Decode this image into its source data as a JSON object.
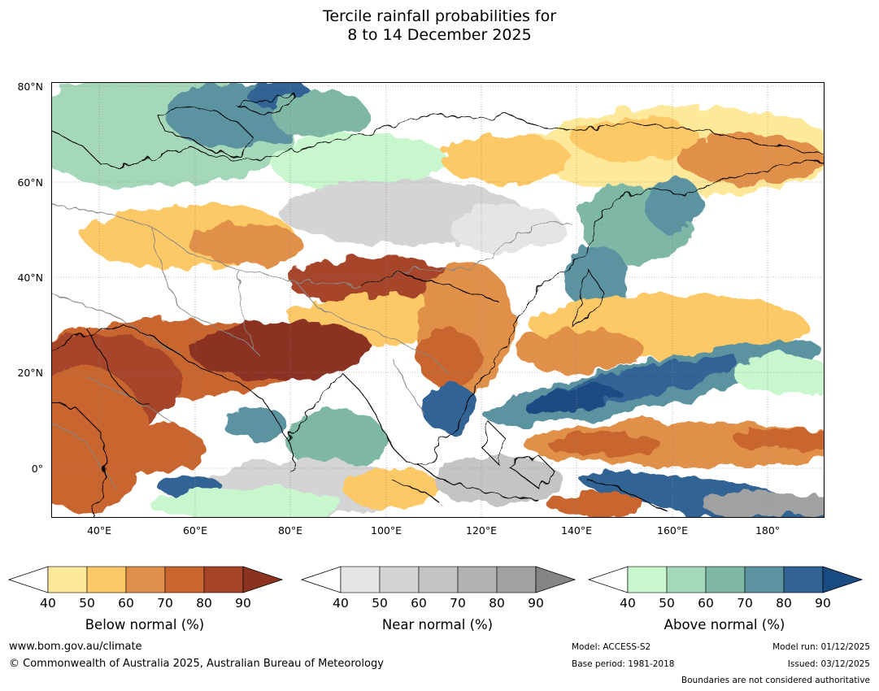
{
  "title": {
    "line1": "Tercile rainfall probabilities for",
    "line2": "8 to 14 December 2025"
  },
  "map": {
    "lat_labels": [
      "80°N",
      "60°N",
      "40°N",
      "20°N",
      "0°"
    ],
    "lon_labels": [
      "40°E",
      "60°E",
      "80°E",
      "100°E",
      "120°E",
      "140°E",
      "160°E",
      "180°"
    ],
    "colors": {
      "below": [
        "#fee99a",
        "#fdc866",
        "#e0904a",
        "#c9652f",
        "#a6442a",
        "#8b3320"
      ],
      "near": [
        "#e5e5e5",
        "#d4d4d4",
        "#c4c4c4",
        "#b2b2b2",
        "#a1a1a1",
        "#858585"
      ],
      "above": [
        "#c8f7ce",
        "#a5d8b9",
        "#7fb7a7",
        "#5b93a0",
        "#316495",
        "#1a4c84"
      ],
      "coastline": "#000000",
      "boundary": "#888888"
    }
  },
  "colorbars": [
    {
      "name": "below",
      "title": "Below normal (%)",
      "ticks": [
        "40",
        "50",
        "60",
        "70",
        "80",
        "90"
      ]
    },
    {
      "name": "near",
      "title": "Near normal (%)",
      "ticks": [
        "40",
        "50",
        "60",
        "70",
        "80",
        "90"
      ]
    },
    {
      "name": "above",
      "title": "Above normal (%)",
      "ticks": [
        "40",
        "50",
        "60",
        "70",
        "80",
        "90"
      ]
    }
  ],
  "footer": {
    "website": "www.bom.gov.au/climate",
    "copyright": "© Commonwealth of Australia 2025, Australian Bureau of Meteorology",
    "model": "Model: ACCESS-S2",
    "base_period": "Base period: 1981-2018",
    "model_run": "Model run: 01/12/2025",
    "issued": "Issued: 03/12/2025",
    "boundaries_note": "Boundaries are not considered authoritative"
  }
}
